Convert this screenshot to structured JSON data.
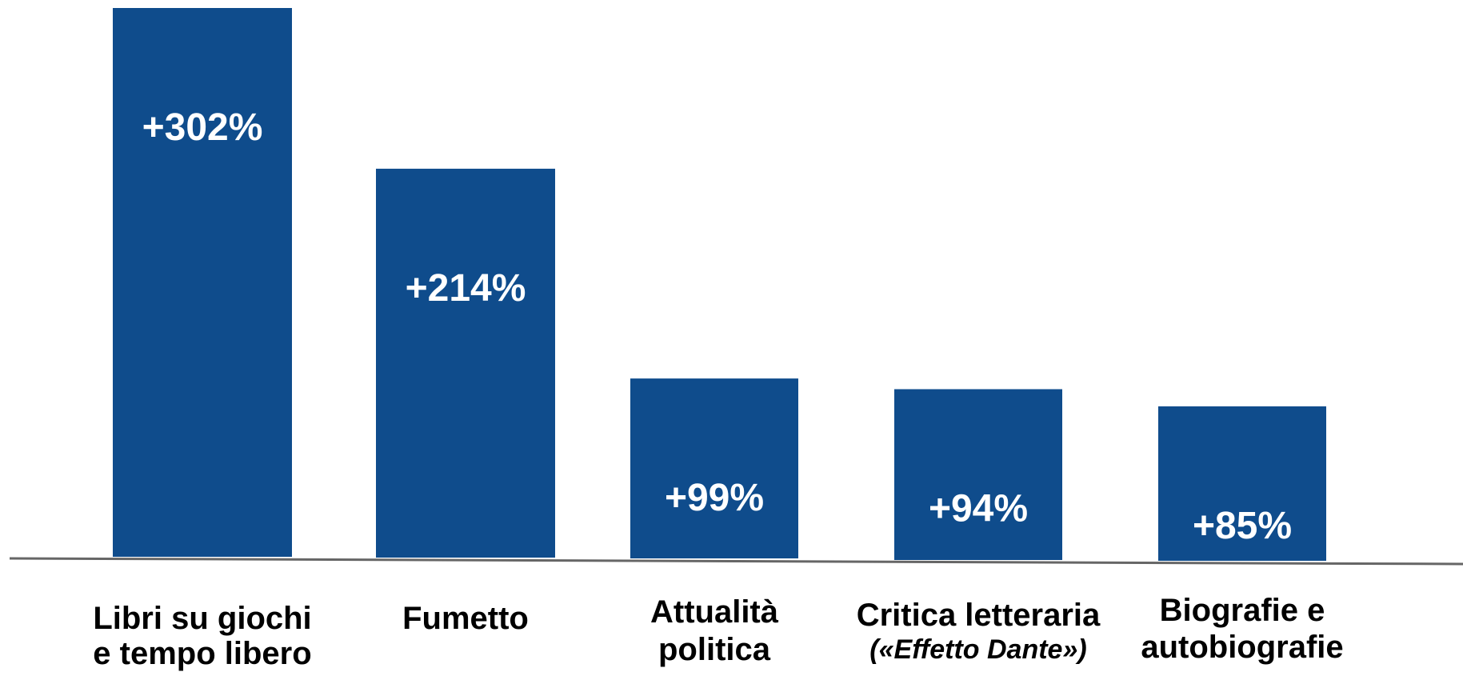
{
  "chart_data": {
    "type": "bar",
    "title": "",
    "xlabel": "",
    "ylabel": "",
    "ylim": [
      0,
      302
    ],
    "grid": false,
    "legend": "none",
    "bar_color": "#0f4c8c",
    "axis_color": "#666666",
    "categories": [
      {
        "lines": [
          [
            "Libri su giochi"
          ],
          [
            "e tempo libero"
          ]
        ]
      },
      {
        "lines": [
          [
            "Fumetto"
          ]
        ]
      },
      {
        "lines": [
          [
            "Attualità"
          ],
          [
            "politica"
          ]
        ]
      },
      {
        "lines": [
          [
            "Critica letteraria"
          ],
          [
            "(«",
            "Effetto Dante",
            "»)"
          ]
        ]
      },
      {
        "lines": [
          [
            "Biografie e"
          ],
          [
            "autobiografie"
          ]
        ]
      }
    ],
    "values": [
      302,
      214,
      99,
      94,
      85
    ],
    "data_labels": [
      "+302%",
      "+214%",
      "+99%",
      "+94%",
      "+85%"
    ]
  }
}
